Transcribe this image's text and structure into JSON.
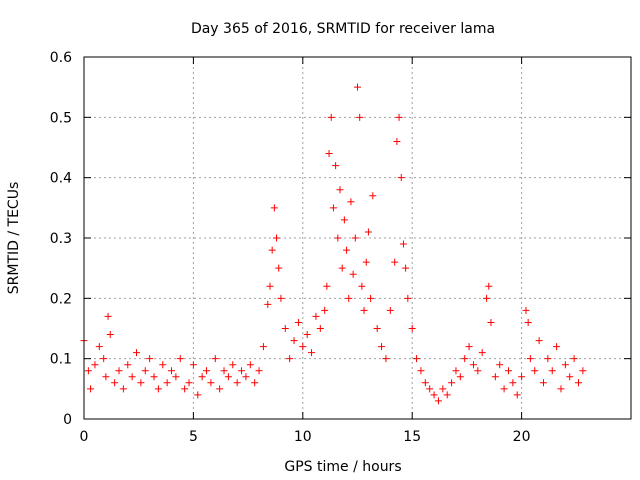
{
  "chart_data": {
    "type": "scatter",
    "title": "Day 365 of 2016, SRMTID for receiver lama",
    "xlabel": "GPS time / hours",
    "ylabel": "SRMTID / TECUs",
    "xlim": [
      0,
      25
    ],
    "ylim": [
      0,
      0.6
    ],
    "xticks": [
      0,
      5,
      10,
      15,
      20
    ],
    "xtick_labels": [
      "0",
      "5",
      "10",
      "15",
      "20"
    ],
    "yticks": [
      0,
      0.1,
      0.2,
      0.3,
      0.4,
      0.5,
      0.6
    ],
    "ytick_labels": [
      "0",
      "0.1",
      "0.2",
      "0.3",
      "0.4",
      "0.5",
      "0.6"
    ],
    "grid": true,
    "marker": "+",
    "color": "#ff0000",
    "series": [
      {
        "name": "SRMTID",
        "x": [
          0.0,
          0.2,
          0.3,
          0.5,
          0.7,
          0.9,
          1.0,
          1.1,
          1.2,
          1.4,
          1.6,
          1.8,
          2.0,
          2.2,
          2.4,
          2.6,
          2.8,
          3.0,
          3.2,
          3.4,
          3.6,
          3.8,
          4.0,
          4.2,
          4.4,
          4.6,
          4.8,
          5.0,
          5.2,
          5.4,
          5.6,
          5.8,
          6.0,
          6.2,
          6.4,
          6.6,
          6.8,
          7.0,
          7.2,
          7.4,
          7.6,
          7.8,
          8.0,
          8.2,
          8.4,
          8.5,
          8.6,
          8.7,
          8.8,
          8.9,
          9.0,
          9.2,
          9.4,
          9.6,
          9.8,
          10.0,
          10.2,
          10.4,
          10.6,
          10.8,
          11.0,
          11.1,
          11.2,
          11.3,
          11.4,
          11.5,
          11.6,
          11.7,
          11.8,
          11.9,
          12.0,
          12.1,
          12.2,
          12.3,
          12.4,
          12.5,
          12.6,
          12.7,
          12.8,
          12.9,
          13.0,
          13.1,
          13.2,
          13.4,
          13.6,
          13.8,
          14.0,
          14.2,
          14.3,
          14.4,
          14.5,
          14.6,
          14.7,
          14.8,
          15.0,
          15.2,
          15.4,
          15.6,
          15.8,
          16.0,
          16.2,
          16.4,
          16.6,
          16.8,
          17.0,
          17.2,
          17.4,
          17.6,
          17.8,
          18.0,
          18.2,
          18.4,
          18.5,
          18.6,
          18.8,
          19.0,
          19.2,
          19.4,
          19.6,
          19.8,
          20.0,
          20.2,
          20.3,
          20.4,
          20.6,
          20.8,
          21.0,
          21.2,
          21.4,
          21.6,
          21.8,
          22.0,
          22.2,
          22.4,
          22.6,
          22.8
        ],
        "y": [
          0.13,
          0.08,
          0.05,
          0.09,
          0.12,
          0.1,
          0.07,
          0.17,
          0.14,
          0.06,
          0.08,
          0.05,
          0.09,
          0.07,
          0.11,
          0.06,
          0.08,
          0.1,
          0.07,
          0.05,
          0.09,
          0.06,
          0.08,
          0.07,
          0.1,
          0.05,
          0.06,
          0.09,
          0.04,
          0.07,
          0.08,
          0.06,
          0.1,
          0.05,
          0.08,
          0.07,
          0.09,
          0.06,
          0.08,
          0.07,
          0.09,
          0.06,
          0.08,
          0.12,
          0.19,
          0.22,
          0.28,
          0.35,
          0.3,
          0.25,
          0.2,
          0.15,
          0.1,
          0.13,
          0.16,
          0.12,
          0.14,
          0.11,
          0.17,
          0.15,
          0.18,
          0.22,
          0.44,
          0.5,
          0.35,
          0.42,
          0.3,
          0.38,
          0.25,
          0.33,
          0.28,
          0.2,
          0.36,
          0.24,
          0.3,
          0.55,
          0.5,
          0.22,
          0.18,
          0.26,
          0.31,
          0.2,
          0.37,
          0.15,
          0.12,
          0.1,
          0.18,
          0.26,
          0.46,
          0.5,
          0.4,
          0.29,
          0.25,
          0.2,
          0.15,
          0.1,
          0.08,
          0.06,
          0.05,
          0.04,
          0.03,
          0.05,
          0.04,
          0.06,
          0.08,
          0.07,
          0.1,
          0.12,
          0.09,
          0.08,
          0.11,
          0.2,
          0.22,
          0.16,
          0.07,
          0.09,
          0.05,
          0.08,
          0.06,
          0.04,
          0.07,
          0.18,
          0.16,
          0.1,
          0.08,
          0.13,
          0.06,
          0.1,
          0.08,
          0.12,
          0.05,
          0.09,
          0.07,
          0.1,
          0.06,
          0.08
        ]
      }
    ]
  }
}
